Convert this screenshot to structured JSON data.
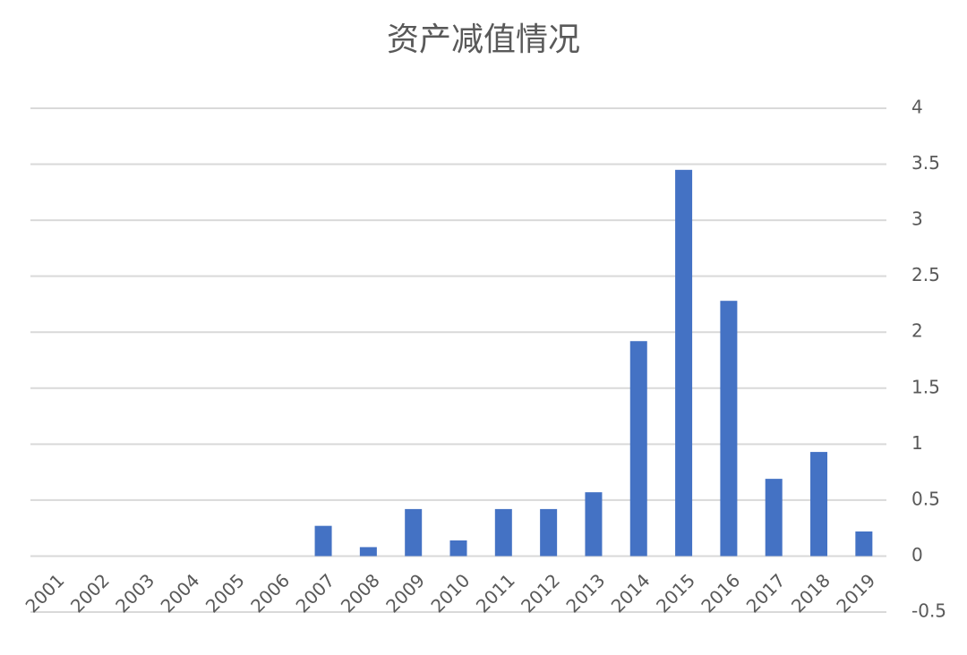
{
  "chart_data": {
    "type": "bar",
    "title": "资产减值情况",
    "categories": [
      "2001",
      "2002",
      "2003",
      "2004",
      "2005",
      "2006",
      "2007",
      "2008",
      "2009",
      "2010",
      "2011",
      "2012",
      "2013",
      "2014",
      "2015",
      "2016",
      "2017",
      "2018",
      "2019"
    ],
    "values": [
      0,
      0,
      0,
      0,
      0,
      0,
      0.27,
      0.08,
      0.42,
      0.14,
      0.42,
      0.42,
      0.57,
      1.92,
      3.45,
      2.28,
      0.69,
      0.93,
      0.22
    ],
    "color": "#4472c4",
    "ylim": [
      -0.5,
      4
    ],
    "yticks": [
      -0.5,
      0,
      0.5,
      1,
      1.5,
      2,
      2.5,
      3,
      3.5,
      4
    ],
    "grid": true
  }
}
